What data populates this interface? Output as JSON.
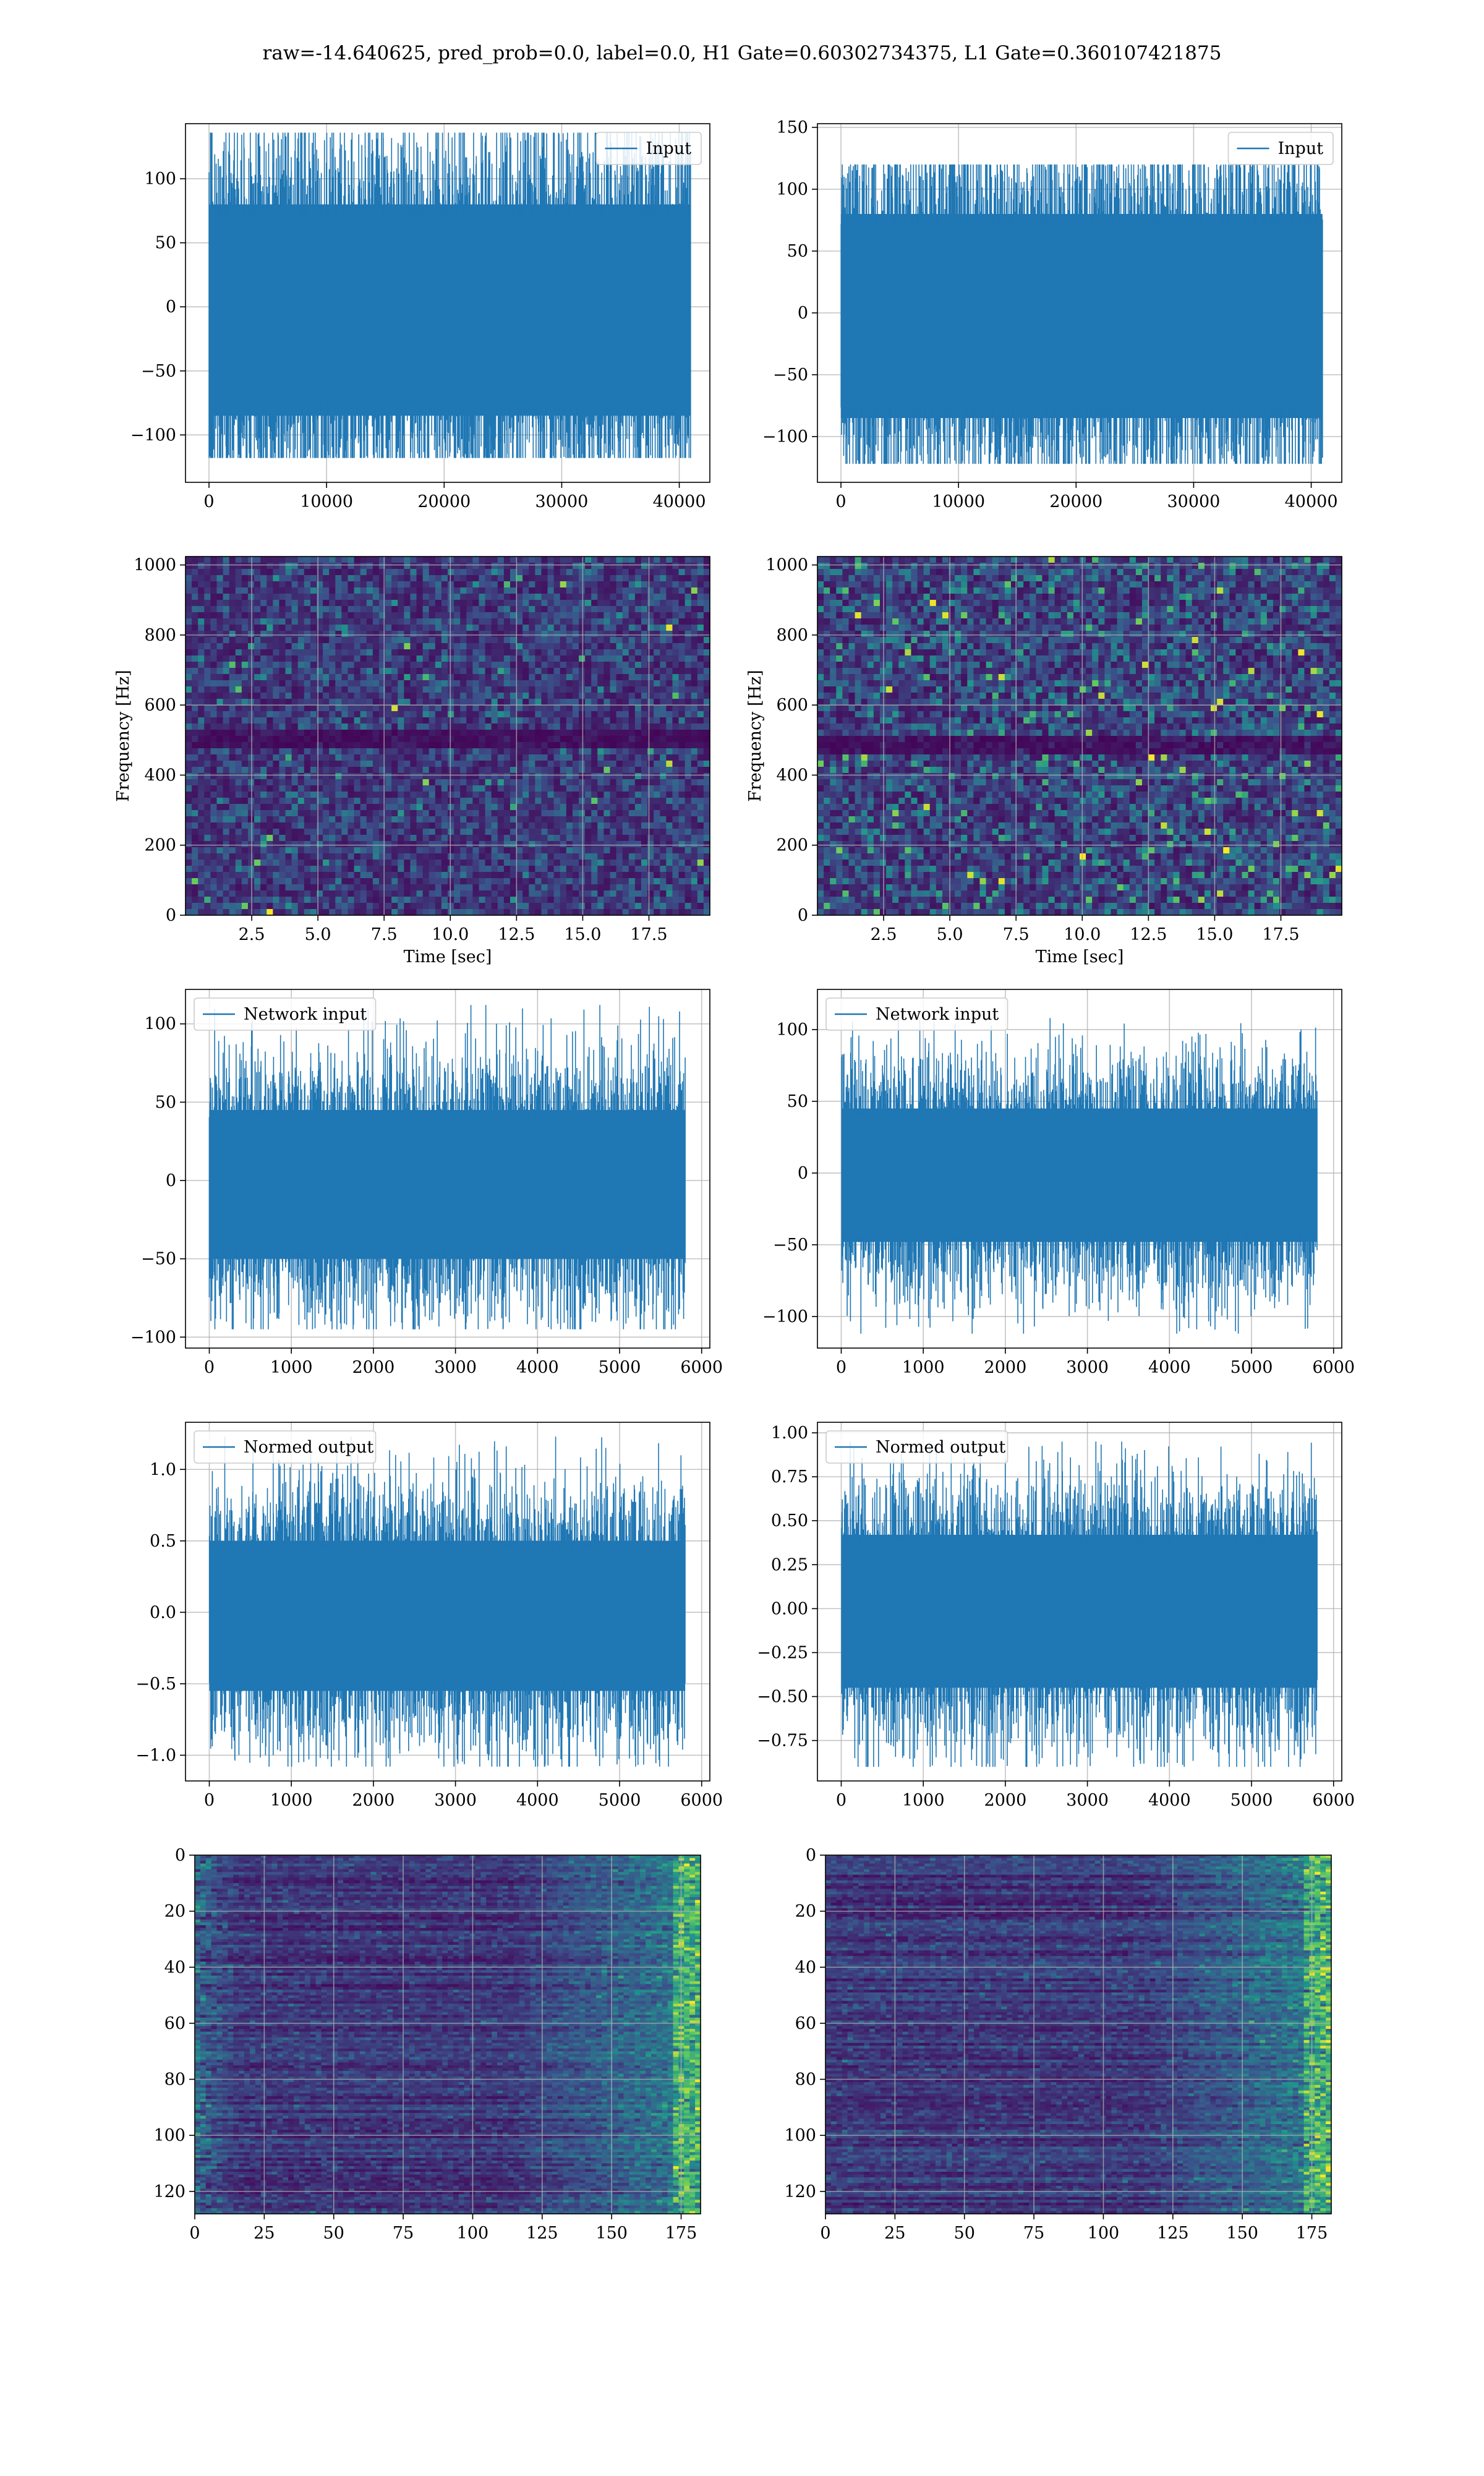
{
  "figure": {
    "suptitle": "raw=-14.640625, pred_prob=0.0, label=0.0, H1 Gate=0.60302734375, L1 Gate=0.360107421875"
  },
  "colors": {
    "line": "#1f77b4",
    "grid": "#b0b0b0",
    "viridis": [
      "#440154",
      "#3b528b",
      "#21918c",
      "#5ec962",
      "#fde725"
    ]
  },
  "chart_data": [
    {
      "id": "ts-input-left",
      "type": "line",
      "legend": "Input",
      "legend_loc": "upper-right",
      "xlim": [
        -2000,
        42600
      ],
      "ylim": [
        -137,
        143
      ],
      "xticks": [
        0,
        10000,
        20000,
        30000,
        40000
      ],
      "yticks": [
        -100,
        -50,
        0,
        50,
        100
      ],
      "x_range": [
        0,
        40960
      ],
      "envelope": [
        -85,
        80
      ],
      "spikes": [
        -118,
        136
      ],
      "grid": true,
      "xlabel": "",
      "ylabel": ""
    },
    {
      "id": "ts-input-right",
      "type": "line",
      "legend": "Input",
      "legend_loc": "upper-right",
      "xlim": [
        -2000,
        42600
      ],
      "ylim": [
        -137,
        153
      ],
      "xticks": [
        0,
        10000,
        20000,
        30000,
        40000
      ],
      "yticks": [
        -100,
        -50,
        0,
        50,
        100,
        150
      ],
      "x_range": [
        0,
        40960
      ],
      "envelope": [
        -85,
        80
      ],
      "spikes": [
        -122,
        120
      ],
      "grid": true,
      "xlabel": "",
      "ylabel": ""
    },
    {
      "id": "spec-left",
      "type": "heatmap",
      "xlim": [
        0,
        19.8
      ],
      "ylim": [
        0,
        1024
      ],
      "xticks": [
        2.5,
        5.0,
        7.5,
        10.0,
        12.5,
        15.0,
        17.5
      ],
      "yticks": [
        0,
        200,
        400,
        600,
        800,
        1000
      ],
      "xlabel": "Time [sec]",
      "ylabel": "Frequency [Hz]",
      "grid": true,
      "dark_band_hz": 510,
      "intensity": "low-uniform-noise"
    },
    {
      "id": "spec-right",
      "type": "heatmap",
      "xlim": [
        0,
        19.8
      ],
      "ylim": [
        0,
        1024
      ],
      "xticks": [
        2.5,
        5.0,
        7.5,
        10.0,
        12.5,
        15.0,
        17.5
      ],
      "yticks": [
        0,
        200,
        400,
        600,
        800,
        1000
      ],
      "xlabel": "Time [sec]",
      "ylabel": "Frequency [Hz]",
      "grid": true,
      "dark_band_hz": 500,
      "intensity": "moderate-noise"
    },
    {
      "id": "ts-network-left",
      "type": "line",
      "legend": "Network input",
      "legend_loc": "upper-left",
      "xlim": [
        -290,
        6100
      ],
      "ylim": [
        -107,
        122
      ],
      "xticks": [
        0,
        1000,
        2000,
        3000,
        4000,
        5000,
        6000
      ],
      "yticks": [
        -100,
        -50,
        0,
        50,
        100
      ],
      "x_range": [
        0,
        5800
      ],
      "envelope": [
        -50,
        45
      ],
      "spikes": [
        -95,
        112
      ],
      "grid": true,
      "xlabel": "",
      "ylabel": ""
    },
    {
      "id": "ts-network-right",
      "type": "line",
      "legend": "Network input",
      "legend_loc": "upper-left",
      "xlim": [
        -290,
        6100
      ],
      "ylim": [
        -122,
        128
      ],
      "xticks": [
        0,
        1000,
        2000,
        3000,
        4000,
        5000,
        6000
      ],
      "yticks": [
        -100,
        -50,
        0,
        50,
        100
      ],
      "x_range": [
        0,
        5800
      ],
      "envelope": [
        -48,
        45
      ],
      "spikes": [
        -112,
        108
      ],
      "grid": true,
      "xlabel": "",
      "ylabel": ""
    },
    {
      "id": "ts-normed-left",
      "type": "line",
      "legend": "Normed output",
      "legend_loc": "upper-left",
      "xlim": [
        -290,
        6100
      ],
      "ylim": [
        -1.18,
        1.33
      ],
      "xticks": [
        0,
        1000,
        2000,
        3000,
        4000,
        5000,
        6000
      ],
      "yticks": [
        -1.0,
        -0.5,
        0.0,
        0.5,
        1.0
      ],
      "x_range": [
        0,
        5800
      ],
      "envelope": [
        -0.55,
        0.5
      ],
      "spikes": [
        -1.08,
        1.23
      ],
      "grid": true,
      "xlabel": "",
      "ylabel": ""
    },
    {
      "id": "ts-normed-right",
      "type": "line",
      "legend": "Normed output",
      "legend_loc": "upper-left",
      "xlim": [
        -290,
        6100
      ],
      "ylim": [
        -0.98,
        1.06
      ],
      "xticks": [
        0,
        1000,
        2000,
        3000,
        4000,
        5000,
        6000
      ],
      "yticks": [
        -0.75,
        -0.5,
        -0.25,
        0.0,
        0.25,
        0.5,
        0.75,
        1.0
      ],
      "ytick_labels": [
        "−0.75",
        "−0.50",
        "−0.25",
        "0.00",
        "0.25",
        "0.50",
        "0.75",
        "1.00"
      ],
      "x_range": [
        0,
        5800
      ],
      "envelope": [
        -0.45,
        0.42
      ],
      "spikes": [
        -0.9,
        0.95
      ],
      "grid": true,
      "xlabel": "",
      "ylabel": ""
    },
    {
      "id": "feat-left",
      "type": "heatmap",
      "xlim": [
        0,
        182
      ],
      "ylim": [
        128,
        0
      ],
      "xticks": [
        0,
        25,
        50,
        75,
        100,
        125,
        150,
        175
      ],
      "yticks": [
        0,
        20,
        40,
        60,
        80,
        100,
        120
      ],
      "grid": true,
      "xlabel": "",
      "ylabel": "",
      "hot_edges": "both"
    },
    {
      "id": "feat-right",
      "type": "heatmap",
      "xlim": [
        0,
        182
      ],
      "ylim": [
        128,
        0
      ],
      "xticks": [
        0,
        25,
        50,
        75,
        100,
        125,
        150,
        175
      ],
      "yticks": [
        0,
        20,
        40,
        60,
        80,
        100,
        120
      ],
      "grid": true,
      "xlabel": "",
      "ylabel": "",
      "hot_edges": "right"
    }
  ]
}
